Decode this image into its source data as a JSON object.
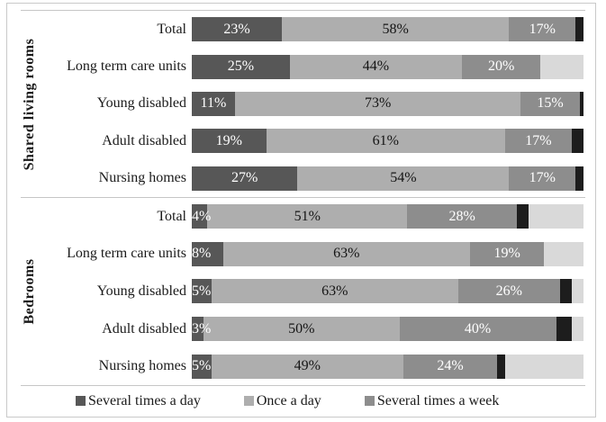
{
  "chart_data": {
    "type": "bar",
    "orientation": "horizontal_stacked",
    "value_unit": "%",
    "xlim": [
      0,
      100
    ],
    "grid": false,
    "legend_position": "bottom",
    "series": [
      {
        "name": "Several times a day",
        "color": "#575757",
        "label_color": "#ffffff",
        "show_label": true,
        "in_legend": true
      },
      {
        "name": "Once a day",
        "color": "#aeaeae",
        "label_color": "#151515",
        "show_label": true,
        "in_legend": true
      },
      {
        "name": "Several times a week",
        "color": "#8d8d8d",
        "label_color": "#ffffff",
        "show_label": true,
        "in_legend": true
      },
      {
        "name": "unlabeled (black)",
        "color": "#1d1d1d",
        "label_color": "#ffffff",
        "show_label": false,
        "in_legend": false
      },
      {
        "name": "unlabeled (lightest gray)",
        "color": "#d9d9d9",
        "label_color": "#151515",
        "show_label": false,
        "in_legend": false
      }
    ],
    "groups": [
      {
        "label": "Shared living rooms",
        "rows": [
          {
            "label": "Total",
            "values": [
              23,
              58,
              17,
              2,
              0
            ]
          },
          {
            "label": "Long term care units",
            "values": [
              25,
              44,
              20,
              0,
              11
            ]
          },
          {
            "label": "Young disabled",
            "values": [
              11,
              73,
              15,
              1,
              0
            ]
          },
          {
            "label": "Adult disabled",
            "values": [
              19,
              61,
              17,
              3,
              0
            ]
          },
          {
            "label": "Nursing homes",
            "values": [
              27,
              54,
              17,
              2,
              0
            ]
          }
        ]
      },
      {
        "label": "Bedrooms",
        "rows": [
          {
            "label": "Total",
            "values": [
              4,
              51,
              28,
              3,
              14
            ]
          },
          {
            "label": "Long term care units",
            "values": [
              8,
              63,
              19,
              0,
              10
            ]
          },
          {
            "label": "Young disabled",
            "values": [
              5,
              63,
              26,
              3,
              3
            ]
          },
          {
            "label": "Adult disabled",
            "values": [
              3,
              50,
              40,
              4,
              3
            ]
          },
          {
            "label": "Nursing homes",
            "values": [
              5,
              49,
              24,
              2,
              20
            ]
          }
        ]
      }
    ]
  },
  "legend": {
    "items": [
      {
        "label": "Several times a day",
        "color": "#575757"
      },
      {
        "label": "Once a day",
        "color": "#aeaeae"
      },
      {
        "label": "Several times a week",
        "color": "#8d8d8d"
      }
    ]
  }
}
